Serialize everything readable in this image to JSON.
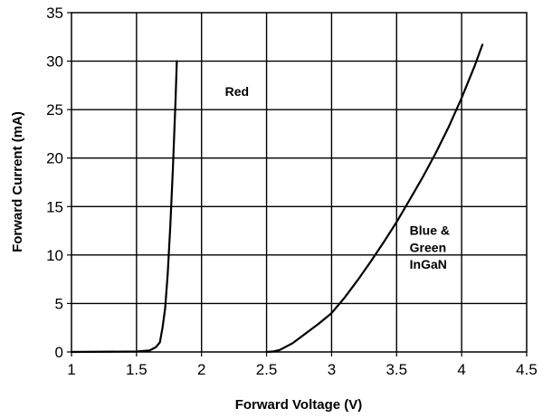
{
  "chart_data": {
    "type": "line",
    "xlabel": "Forward Voltage (V)",
    "ylabel": "Forward Current (mA)",
    "xlim": [
      1,
      4.5
    ],
    "ylim": [
      0,
      35
    ],
    "x_ticks": [
      1,
      1.5,
      2,
      2.5,
      3,
      3.5,
      4,
      4.5
    ],
    "x_tick_labels": [
      "1",
      "1.5",
      "2",
      "2.5",
      "3",
      "3.5",
      "4",
      "4.5"
    ],
    "y_ticks": [
      0,
      5,
      10,
      15,
      20,
      25,
      30,
      35
    ],
    "y_tick_labels": [
      "0",
      "5",
      "10",
      "15",
      "20",
      "25",
      "30",
      "35"
    ],
    "grid": true,
    "line_color": "#000000",
    "series": [
      {
        "label": "Red",
        "x": [
          1.0,
          1.5,
          1.6,
          1.65,
          1.68,
          1.7,
          1.72,
          1.74,
          1.76,
          1.78,
          1.8,
          1.81
        ],
        "y": [
          0,
          0.05,
          0.15,
          0.5,
          1.0,
          2.5,
          4.5,
          8.0,
          13.0,
          19.0,
          26.0,
          30.0
        ]
      },
      {
        "label": "Blue & Green InGaN",
        "x": [
          2.5,
          2.55,
          2.6,
          2.7,
          2.8,
          2.9,
          3.0,
          3.1,
          3.2,
          3.3,
          3.4,
          3.5,
          3.6,
          3.7,
          3.8,
          3.9,
          4.0,
          4.1,
          4.16
        ],
        "y": [
          0,
          0.05,
          0.2,
          0.9,
          1.9,
          2.9,
          4.0,
          5.6,
          7.4,
          9.3,
          11.3,
          13.4,
          15.7,
          18.0,
          20.5,
          23.2,
          26.2,
          29.5,
          31.7
        ]
      }
    ],
    "annotations": [
      {
        "text": "Red",
        "x": 2.18,
        "y": 26.4
      },
      {
        "text": "Blue &",
        "x": 3.6,
        "y": 12.1
      },
      {
        "text": "Green",
        "x": 3.6,
        "y": 10.3
      },
      {
        "text": "InGaN",
        "x": 3.6,
        "y": 8.6
      }
    ]
  }
}
